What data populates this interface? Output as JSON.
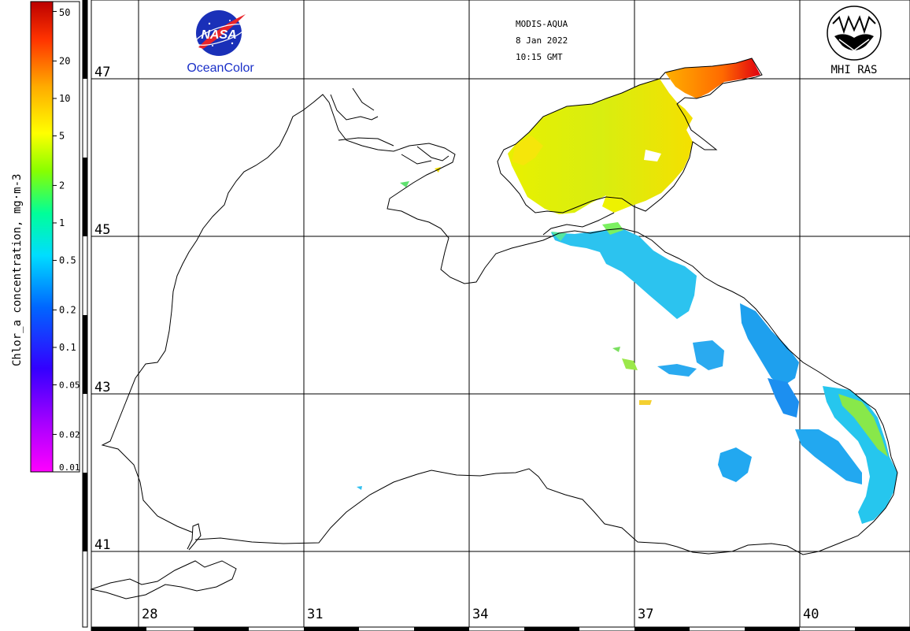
{
  "header": {
    "sensor": "MODIS-AQUA",
    "date": "8 Jan 2022",
    "time": "10:15 GMT"
  },
  "logos": {
    "nasa_text": "NASA",
    "ocean_color": "OceanColor",
    "mhi": "MHI RAS"
  },
  "legend": {
    "title": "Chlor_a concentration, mg·m-3",
    "scale": "log",
    "range": [
      0.01,
      60
    ],
    "ticks": [
      {
        "value": 50,
        "label": "50"
      },
      {
        "value": 20,
        "label": "20"
      },
      {
        "value": 10,
        "label": "10"
      },
      {
        "value": 5,
        "label": "5"
      },
      {
        "value": 2,
        "label": "2"
      },
      {
        "value": 1,
        "label": "1"
      },
      {
        "value": 0.5,
        "label": "0.5"
      },
      {
        "value": 0.2,
        "label": "0.2"
      },
      {
        "value": 0.1,
        "label": "0.1"
      },
      {
        "value": 0.05,
        "label": "0.05"
      },
      {
        "value": 0.02,
        "label": "0.02"
      },
      {
        "value": 0.01,
        "label": "0.01"
      }
    ],
    "colors": [
      "#ff00ff",
      "#8800ff",
      "#0000ff",
      "#0088ff",
      "#00ffff",
      "#00ff88",
      "#88ff00",
      "#ffff00",
      "#ffaa00",
      "#ff4400",
      "#cc0000"
    ]
  },
  "grid": {
    "latitudes": [
      {
        "value": 47,
        "label": "47"
      },
      {
        "value": 45,
        "label": "45"
      },
      {
        "value": 43,
        "label": "43"
      },
      {
        "value": 41,
        "label": "41"
      }
    ],
    "longitudes": [
      {
        "value": 28,
        "label": "28"
      },
      {
        "value": 31,
        "label": "31"
      },
      {
        "value": 34,
        "label": "34"
      },
      {
        "value": 37,
        "label": "37"
      },
      {
        "value": 40,
        "label": "40"
      }
    ]
  }
}
